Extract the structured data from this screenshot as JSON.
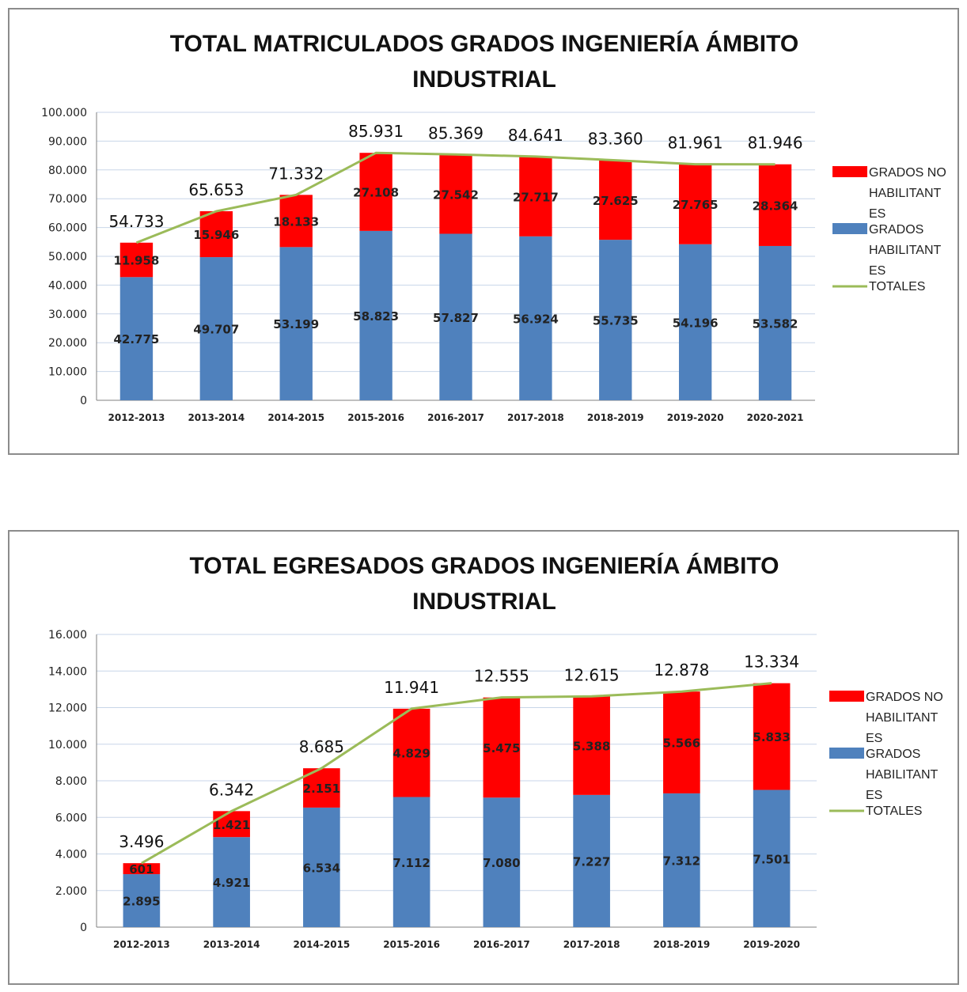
{
  "colors": {
    "no_habilitantes": "#ff0000",
    "habilitantes": "#4f81bd",
    "totales": "#9bbb59",
    "grid": "#c8d6e8",
    "axis": "#808080"
  },
  "chart_data": [
    {
      "type": "bar",
      "stacked": true,
      "title": "TOTAL MATRICULADOS GRADOS INGENIERÍA ÁMBITO INDUSTRIAL",
      "title_lines": [
        "TOTAL MATRICULADOS GRADOS INGENIERÍA ÁMBITO",
        "INDUSTRIAL"
      ],
      "categories": [
        "2012-2013",
        "2013-2014",
        "2014-2015",
        "2015-2016",
        "2016-2017",
        "2017-2018",
        "2018-2019",
        "2019-2020",
        "2020-2021"
      ],
      "ylim": [
        0,
        100000
      ],
      "yticks": [
        0,
        10000,
        20000,
        30000,
        40000,
        50000,
        60000,
        70000,
        80000,
        90000,
        100000
      ],
      "ytick_labels": [
        "0",
        "10.000",
        "20.000",
        "30.000",
        "40.000",
        "50.000",
        "60.000",
        "70.000",
        "80.000",
        "90.000",
        "100.000"
      ],
      "grid": true,
      "legend_position": "right",
      "series": [
        {
          "name": "GRADOS HABILITANTES",
          "legend_lines": [
            "GRADOS",
            "HABILITANT",
            "ES"
          ],
          "color_key": "habilitantes",
          "values": [
            42775,
            49707,
            53199,
            58823,
            57827,
            56924,
            55735,
            54196,
            53582
          ],
          "labels": [
            "42.775",
            "49.707",
            "53.199",
            "58.823",
            "57.827",
            "56.924",
            "55.735",
            "54.196",
            "53.582"
          ]
        },
        {
          "name": "GRADOS NO HABILITANTES",
          "legend_lines": [
            "GRADOS NO",
            "HABILITANT",
            "ES"
          ],
          "color_key": "no_habilitantes",
          "values": [
            11958,
            15946,
            18133,
            27108,
            27542,
            27717,
            27625,
            27765,
            28364
          ],
          "labels": [
            "11.958",
            "15.946",
            "18.133",
            "27.108",
            "27.542",
            "27.717",
            "27.625",
            "27.765",
            "28.364"
          ]
        }
      ],
      "totals": {
        "name": "TOTALES",
        "values": [
          54733,
          65653,
          71332,
          85931,
          85369,
          84641,
          83360,
          81961,
          81946
        ],
        "labels": [
          "54.733",
          "65.653",
          "71.332",
          "85.931",
          "85.369",
          "84.641",
          "83.360",
          "81.961",
          "81.946"
        ]
      }
    },
    {
      "type": "bar",
      "stacked": true,
      "title": "TOTAL EGRESADOS GRADOS INGENIERÍA ÁMBITO INDUSTRIAL",
      "title_lines": [
        "TOTAL EGRESADOS GRADOS INGENIERÍA ÁMBITO",
        "INDUSTRIAL"
      ],
      "categories": [
        "2012-2013",
        "2013-2014",
        "2014-2015",
        "2015-2016",
        "2016-2017",
        "2017-2018",
        "2018-2019",
        "2019-2020"
      ],
      "ylim": [
        0,
        16000
      ],
      "yticks": [
        0,
        2000,
        4000,
        6000,
        8000,
        10000,
        12000,
        14000,
        16000
      ],
      "ytick_labels": [
        "0",
        "2.000",
        "4.000",
        "6.000",
        "8.000",
        "10.000",
        "12.000",
        "14.000",
        "16.000"
      ],
      "grid": true,
      "legend_position": "right",
      "series": [
        {
          "name": "GRADOS HABILITANTES",
          "legend_lines": [
            "GRADOS",
            "HABILITANT",
            "ES"
          ],
          "color_key": "habilitantes",
          "values": [
            2895,
            4921,
            6534,
            7112,
            7080,
            7227,
            7312,
            7501
          ],
          "labels": [
            "2.895",
            "4.921",
            "6.534",
            "7.112",
            "7.080",
            "7.227",
            "7.312",
            "7.501"
          ]
        },
        {
          "name": "GRADOS NO HABILITANTES",
          "legend_lines": [
            "GRADOS NO",
            "HABILITANT",
            "ES"
          ],
          "color_key": "no_habilitantes",
          "values": [
            601,
            1421,
            2151,
            4829,
            5475,
            5388,
            5566,
            5833
          ],
          "labels": [
            "601",
            "1.421",
            "2.151",
            "4.829",
            "5.475",
            "5.388",
            "5.566",
            "5.833"
          ]
        }
      ],
      "totals": {
        "name": "TOTALES",
        "values": [
          3496,
          6342,
          8685,
          11941,
          12555,
          12615,
          12878,
          13334
        ],
        "labels": [
          "3.496",
          "6.342",
          "8.685",
          "11.941",
          "12.555",
          "12.615",
          "12.878",
          "13.334"
        ]
      }
    }
  ]
}
